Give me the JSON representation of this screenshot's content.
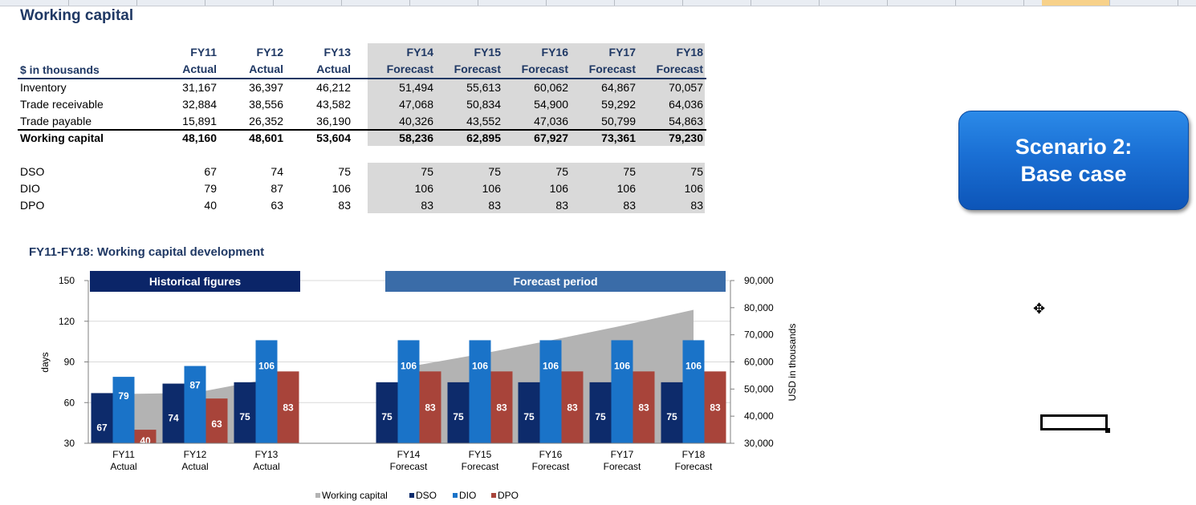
{
  "sheet": {
    "title": "Working capital",
    "units_label": "$ in thousands",
    "years": [
      "FY11",
      "FY12",
      "FY13",
      "FY14",
      "FY15",
      "FY16",
      "FY17",
      "FY18"
    ],
    "kinds": [
      "Actual",
      "Actual",
      "Actual",
      "Forecast",
      "Forecast",
      "Forecast",
      "Forecast",
      "Forecast"
    ],
    "rows": [
      {
        "label": "Inventory",
        "values": [
          "31,167",
          "36,397",
          "46,212",
          "51,494",
          "55,613",
          "60,062",
          "64,867",
          "70,057"
        ]
      },
      {
        "label": "Trade receivable",
        "values": [
          "32,884",
          "38,556",
          "43,582",
          "47,068",
          "50,834",
          "54,900",
          "59,292",
          "64,036"
        ]
      },
      {
        "label": "Trade payable",
        "values": [
          "15,891",
          "26,352",
          "36,190",
          "40,326",
          "43,552",
          "47,036",
          "50,799",
          "54,863"
        ]
      },
      {
        "label": "Working capital",
        "values": [
          "48,160",
          "48,601",
          "53,604",
          "58,236",
          "62,895",
          "67,927",
          "73,361",
          "79,230"
        ]
      }
    ],
    "ratios": [
      {
        "label": "DSO",
        "values": [
          "67",
          "74",
          "75",
          "75",
          "75",
          "75",
          "75",
          "75"
        ]
      },
      {
        "label": "DIO",
        "values": [
          "79",
          "87",
          "106",
          "106",
          "106",
          "106",
          "106",
          "106"
        ]
      },
      {
        "label": "DPO",
        "values": [
          "40",
          "63",
          "83",
          "83",
          "83",
          "83",
          "83",
          "83"
        ]
      }
    ]
  },
  "scenario_button": {
    "line1": "Scenario 2:",
    "line2": "Base case"
  },
  "chart_title": "FY11-FY18: Working capital development",
  "chart_data": {
    "type": "bar",
    "categories": [
      "FY11\nActual",
      "FY12\nActual",
      "FY13\nActual",
      "FY14\nForecast",
      "FY15\nForecast",
      "FY16\nForecast",
      "FY17\nForecast",
      "FY18\nForecast"
    ],
    "series": [
      {
        "name": "DSO",
        "values": [
          67,
          74,
          75,
          75,
          75,
          75,
          75,
          75
        ],
        "color": "#0d2b6b"
      },
      {
        "name": "DIO",
        "values": [
          79,
          87,
          106,
          106,
          106,
          106,
          106,
          106
        ],
        "color": "#1a73c8"
      },
      {
        "name": "DPO",
        "values": [
          40,
          63,
          83,
          83,
          83,
          83,
          83,
          83
        ],
        "color": "#a8443a"
      }
    ],
    "area_series": {
      "name": "Working capital",
      "values": [
        48160,
        48601,
        53604,
        58236,
        62895,
        67927,
        73361,
        79230
      ],
      "color": "#b3b3b3",
      "axis": "right"
    },
    "banners": {
      "historical": "Historical figures",
      "forecast": "Forecast period"
    },
    "ylabel": "days",
    "ylim": [
      30,
      150
    ],
    "yticks": [
      "30",
      "60",
      "90",
      "120",
      "150"
    ],
    "y2label": "USD in thousands",
    "y2lim": [
      30000,
      90000
    ],
    "y2ticks": [
      "30,000",
      "40,000",
      "50,000",
      "60,000",
      "70,000",
      "80,000",
      "90,000"
    ],
    "legend": [
      "Working capital",
      "DSO",
      "DIO",
      "DPO"
    ],
    "legend_position": "bottom",
    "grid": true
  }
}
